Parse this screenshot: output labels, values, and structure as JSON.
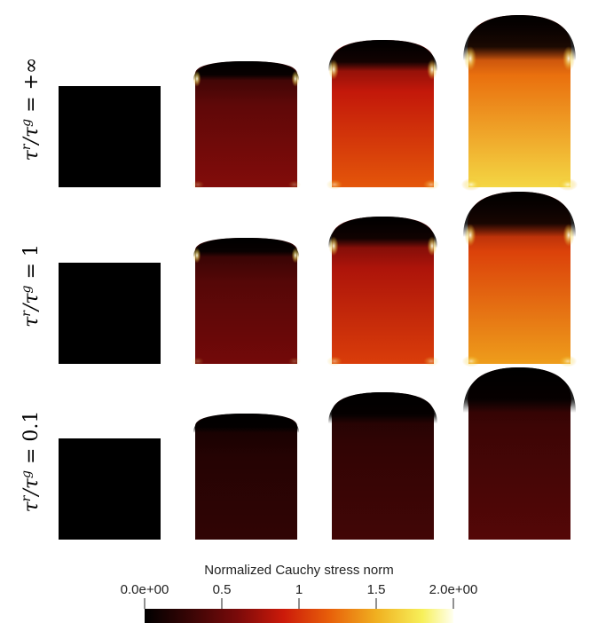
{
  "rows": [
    {
      "label": "τʳ/τᵍ = +∞",
      "label_parts": {
        "a": "τ",
        "a_sup": "r",
        "b": "τ",
        "b_sup": "g",
        "rhs": "= +∞"
      },
      "stages": [
        {
          "growth": 0.0,
          "intensity": 0.0
        },
        {
          "growth": 0.35,
          "intensity": 0.3
        },
        {
          "growth": 0.65,
          "intensity": 0.55
        },
        {
          "growth": 1.0,
          "intensity": 0.8
        }
      ]
    },
    {
      "label": "τʳ/τᵍ = 1",
      "label_parts": {
        "a": "τ",
        "a_sup": "r",
        "b": "τ",
        "b_sup": "g",
        "rhs": "= 1"
      },
      "stages": [
        {
          "growth": 0.0,
          "intensity": 0.0
        },
        {
          "growth": 0.35,
          "intensity": 0.27
        },
        {
          "growth": 0.65,
          "intensity": 0.5
        },
        {
          "growth": 1.0,
          "intensity": 0.68
        }
      ]
    },
    {
      "label": "τʳ/τᵍ = 0.1",
      "label_parts": {
        "a": "τ",
        "a_sup": "r",
        "b": "τ",
        "b_sup": "g",
        "rhs": "= 0.1"
      },
      "stages": [
        {
          "growth": 0.0,
          "intensity": 0.0
        },
        {
          "growth": 0.35,
          "intensity": 0.12
        },
        {
          "growth": 0.65,
          "intensity": 0.16
        },
        {
          "growth": 1.0,
          "intensity": 0.2
        }
      ]
    }
  ],
  "colorbar": {
    "title": "Normalized Cauchy stress norm",
    "min": 0.0,
    "max": 2.0,
    "ticks": [
      {
        "value": 0.0,
        "label": "0.0e+00"
      },
      {
        "value": 0.5,
        "label": "0.5"
      },
      {
        "value": 1.0,
        "label": "1"
      },
      {
        "value": 1.5,
        "label": "1.5"
      },
      {
        "value": 2.0,
        "label": "2.0e+00"
      }
    ],
    "colormap": [
      "#000000",
      "#3a0505",
      "#7a0a0a",
      "#cc1a0a",
      "#e8600a",
      "#f0b020",
      "#f7f05a",
      "#fffff0"
    ]
  }
}
